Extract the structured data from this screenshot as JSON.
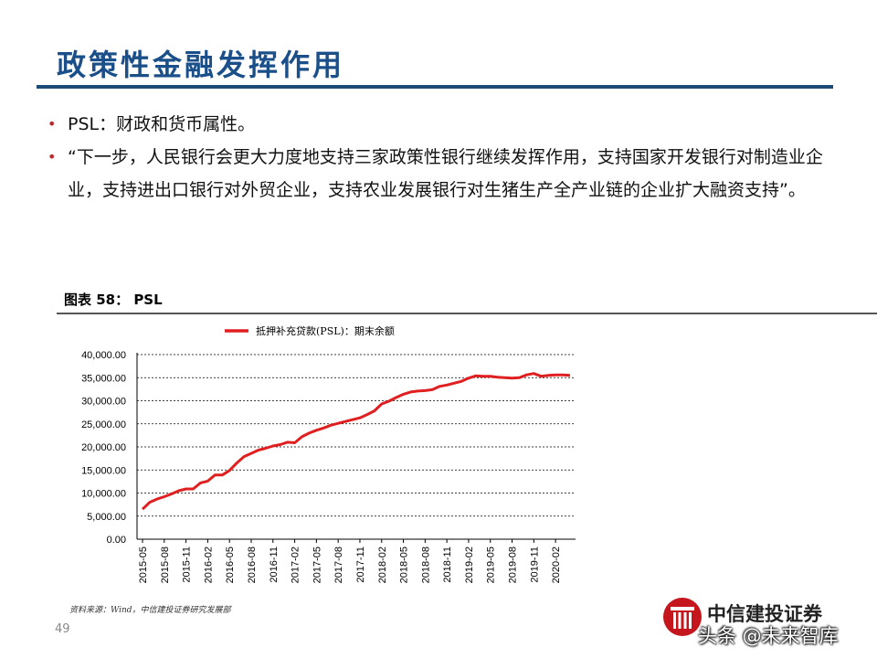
{
  "slide": {
    "title": "政策性金融发挥作用",
    "bullets": [
      "PSL：财政和货币属性。",
      "“下一步，人民银行会更大力度地支持三家政策性银行继续发挥作用，支持国家开发银行对制造业企业，支持进出口银行对外贸企业，支持农业发展银行对生猪生产全产业链的企业扩大融资支持”。"
    ],
    "figure_caption": "图表 58：  PSL",
    "source": "资料来源：Wind，中信建投证券研究发展部",
    "page_number": "49",
    "brand_name": "中信建投证券",
    "watermark": "头条 @未来智库"
  },
  "colors": {
    "series": "#e02020",
    "title": "#1a4f8a",
    "rule": "#1e4a78",
    "bullet_dot": "#c0272d",
    "brand": "#c4161c"
  },
  "chart_data": {
    "type": "line",
    "title": "",
    "xlabel": "",
    "ylabel": "",
    "ylim": [
      0,
      40000
    ],
    "yticks": [
      "0.00",
      "5,000.00",
      "10,000.00",
      "15,000.00",
      "20,000.00",
      "25,000.00",
      "30,000.00",
      "35,000.00",
      "40,000.00"
    ],
    "xticks": [
      "2015-05",
      "2015-08",
      "2015-11",
      "2016-02",
      "2016-05",
      "2016-08",
      "2016-11",
      "2017-02",
      "2017-05",
      "2017-08",
      "2017-11",
      "2018-02",
      "2018-05",
      "2018-08",
      "2018-11",
      "2019-02",
      "2019-05",
      "2019-08",
      "2019-11",
      "2020-02"
    ],
    "grid": true,
    "legend_position": "top-center",
    "series": [
      {
        "name": "抵押补充贷款(PSL)：期末余额",
        "x": [
          "2015-05",
          "2015-06",
          "2015-07",
          "2015-08",
          "2015-09",
          "2015-10",
          "2015-11",
          "2015-12",
          "2016-01",
          "2016-02",
          "2016-03",
          "2016-04",
          "2016-05",
          "2016-06",
          "2016-07",
          "2016-08",
          "2016-09",
          "2016-10",
          "2016-11",
          "2016-12",
          "2017-01",
          "2017-02",
          "2017-03",
          "2017-04",
          "2017-05",
          "2017-06",
          "2017-07",
          "2017-08",
          "2017-09",
          "2017-10",
          "2017-11",
          "2017-12",
          "2018-01",
          "2018-02",
          "2018-03",
          "2018-04",
          "2018-05",
          "2018-06",
          "2018-07",
          "2018-08",
          "2018-09",
          "2018-10",
          "2018-11",
          "2018-12",
          "2019-01",
          "2019-02",
          "2019-03",
          "2019-04",
          "2019-05",
          "2019-06",
          "2019-07",
          "2019-08",
          "2019-09",
          "2019-10",
          "2019-11",
          "2019-12",
          "2020-01",
          "2020-02",
          "2020-03",
          "2020-04"
        ],
        "values": [
          6500,
          8000,
          8700,
          9200,
          9800,
          10500,
          10900,
          10900,
          12200,
          12600,
          13900,
          13900,
          14900,
          16500,
          17900,
          18600,
          19300,
          19700,
          20200,
          20500,
          21000,
          20900,
          22200,
          23000,
          23600,
          24100,
          24700,
          25100,
          25500,
          25900,
          26300,
          27000,
          27800,
          29300,
          29900,
          30700,
          31400,
          31900,
          32100,
          32200,
          32400,
          33100,
          33400,
          33800,
          34200,
          34900,
          35400,
          35300,
          35300,
          35100,
          35000,
          34900,
          35000,
          35600,
          35900,
          35300,
          35500,
          35600,
          35600,
          35500
        ]
      }
    ]
  }
}
